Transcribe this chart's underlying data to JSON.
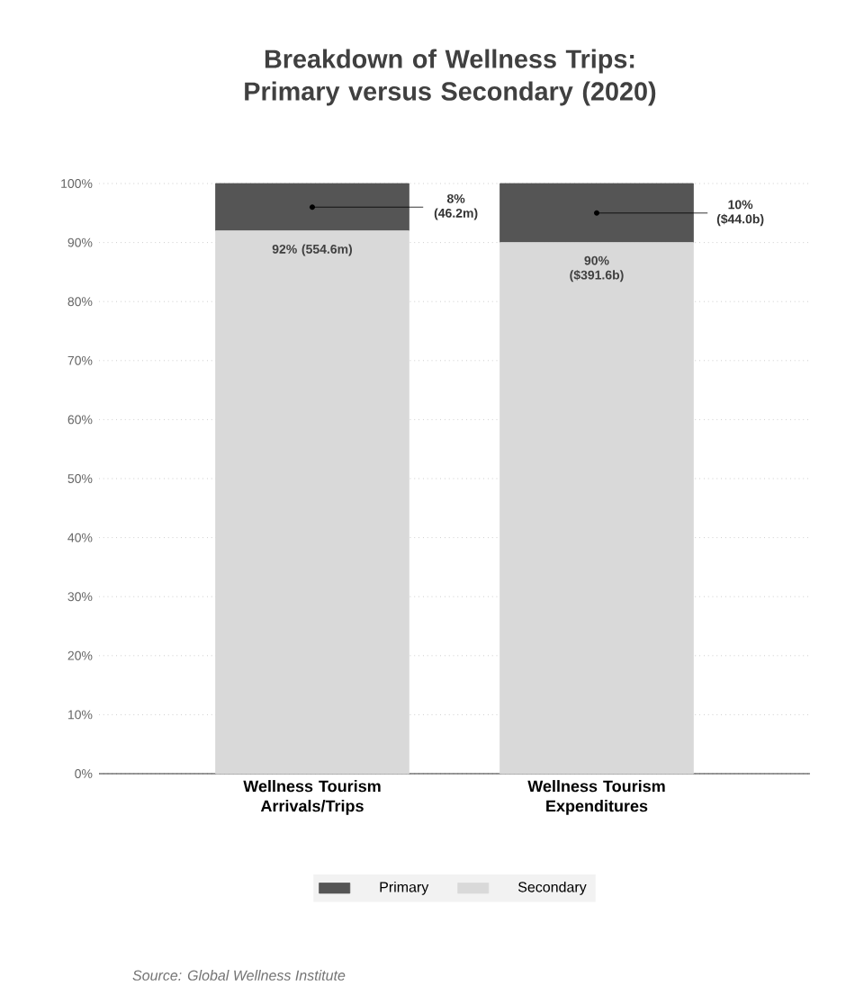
{
  "chart_data": {
    "type": "bar",
    "title": "Breakdown of Wellness Trips: Primary versus Secondary (2020)",
    "categories": [
      "Wellness Tourism Arrivals/Trips",
      "Wellness Tourism Expenditures"
    ],
    "stacked": true,
    "series": [
      {
        "name": "Secondary",
        "color": "#d9d9d9",
        "values": [
          92,
          90
        ],
        "value_labels": [
          "92% (554.6m)",
          "90% ($391.6b)"
        ]
      },
      {
        "name": "Primary",
        "color": "#555555",
        "values": [
          8,
          10
        ],
        "value_labels": [
          "8% (46.2m)",
          "10% ($44.0b)"
        ]
      }
    ],
    "ylim": [
      0,
      100
    ],
    "yticks": [
      {
        "value": 0,
        "label": "0%"
      },
      {
        "value": 10,
        "label": "10%"
      },
      {
        "value": 20,
        "label": "20%"
      },
      {
        "value": 30,
        "label": "30%"
      },
      {
        "value": 40,
        "label": "40%"
      },
      {
        "value": 50,
        "label": "50%"
      },
      {
        "value": 60,
        "label": "60%"
      },
      {
        "value": 70,
        "label": "70%"
      },
      {
        "value": 80,
        "label": "80%"
      },
      {
        "value": 90,
        "label": "90%"
      },
      {
        "value": 100,
        "label": "100%"
      }
    ],
    "grid": "y",
    "legend": "bottom",
    "annotations": [
      "Source: Global Wellness Institute"
    ]
  }
}
